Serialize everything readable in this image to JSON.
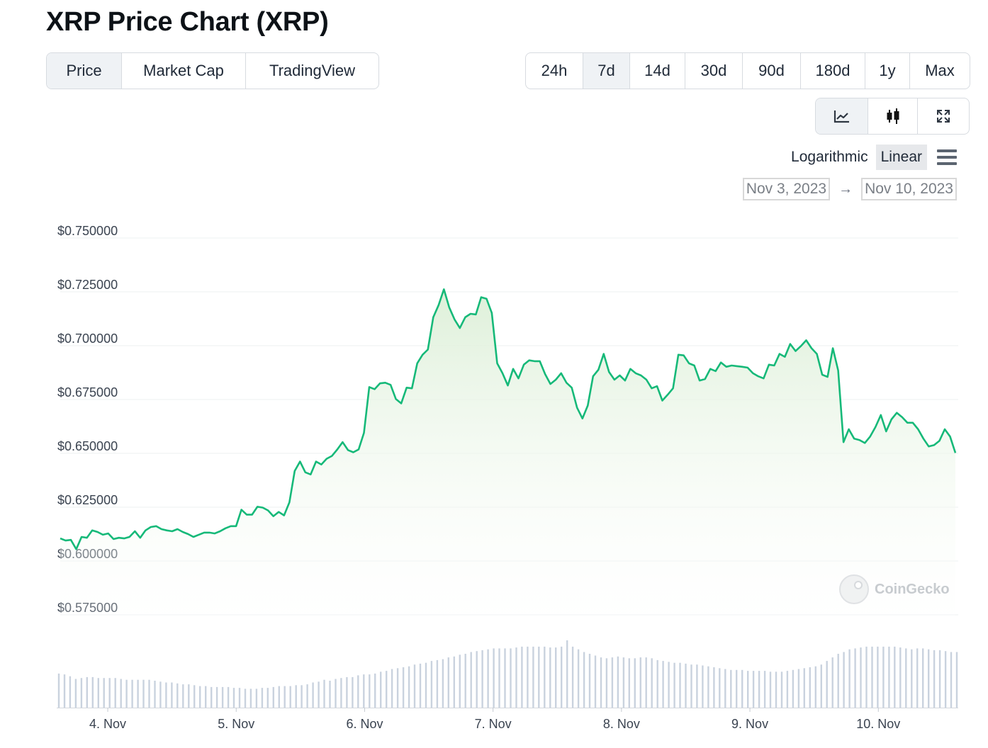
{
  "page": {
    "title": "XRP Price Chart (XRP)"
  },
  "tabs": {
    "view": [
      "Price",
      "Market Cap",
      "TradingView"
    ],
    "view_active": 0,
    "range": [
      "24h",
      "7d",
      "14d",
      "30d",
      "90d",
      "180d",
      "1y",
      "Max"
    ],
    "range_active": 1,
    "chart_type_icons": [
      "line-chart-icon",
      "candlestick-icon",
      "fullscreen-icon"
    ],
    "chart_type_active": 0
  },
  "scale": {
    "log_label": "Logarithmic",
    "linear_label": "Linear",
    "active": "Linear"
  },
  "date_range": {
    "from": "Nov 3, 2023",
    "arrow": "→",
    "to": "Nov 10, 2023"
  },
  "watermark": "CoinGecko",
  "colors": {
    "line": "#16b979",
    "area_top": "#dcefd7",
    "volume": "#c9d2de",
    "grid": "#eef0f2"
  },
  "chart_data": {
    "type": "area",
    "title": "",
    "xlabel": "",
    "ylabel": "",
    "ylim": [
      0.57,
      0.755
    ],
    "yticks": [
      "$0.750000",
      "$0.725000",
      "$0.700000",
      "$0.675000",
      "$0.650000",
      "$0.625000",
      "$0.600000",
      "$0.575000"
    ],
    "ytick_values": [
      0.75,
      0.725,
      0.7,
      0.675,
      0.65,
      0.625,
      0.6,
      0.575
    ],
    "xticks": [
      "4. Nov",
      "5. Nov",
      "6. Nov",
      "7. Nov",
      "8. Nov",
      "9. Nov",
      "10. Nov"
    ],
    "xtick_days": [
      4,
      5,
      6,
      7,
      8,
      9,
      10
    ],
    "x_start_day": 3.63,
    "x_end_day": 10.6,
    "grid": true,
    "series": [
      {
        "values": [
          0.6105,
          0.6095,
          0.6098,
          0.6055,
          0.6112,
          0.6108,
          0.6142,
          0.6135,
          0.6122,
          0.6128,
          0.6102,
          0.6108,
          0.6105,
          0.6112,
          0.6138,
          0.6108,
          0.6142,
          0.6158,
          0.6162,
          0.6148,
          0.6142,
          0.6138,
          0.6148,
          0.6135,
          0.6125,
          0.6112,
          0.6122,
          0.6132,
          0.6132,
          0.6128,
          0.6138,
          0.6152,
          0.6162,
          0.6162,
          0.6238,
          0.6215,
          0.6215,
          0.6252,
          0.6248,
          0.6235,
          0.6208,
          0.6228,
          0.6212,
          0.6272,
          0.6418,
          0.6462,
          0.6412,
          0.6402,
          0.6462,
          0.6448,
          0.6475,
          0.6488,
          0.6518,
          0.6552,
          0.6515,
          0.6505,
          0.6518,
          0.6595,
          0.6808,
          0.6798,
          0.6825,
          0.6828,
          0.6818,
          0.6752,
          0.6732,
          0.6805,
          0.6802,
          0.6918,
          0.6958,
          0.6982,
          0.7132,
          0.7188,
          0.7262,
          0.7178,
          0.7122,
          0.7082,
          0.7132,
          0.7148,
          0.7145,
          0.7225,
          0.7218,
          0.7152,
          0.6918,
          0.6872,
          0.6815,
          0.6892,
          0.6848,
          0.6912,
          0.6932,
          0.6928,
          0.6928,
          0.6868,
          0.6822,
          0.6842,
          0.6872,
          0.6828,
          0.6805,
          0.6712,
          0.6662,
          0.6722,
          0.6858,
          0.6888,
          0.6962,
          0.6878,
          0.6842,
          0.6862,
          0.6838,
          0.6892,
          0.6872,
          0.6862,
          0.6842,
          0.6802,
          0.6812,
          0.6745,
          0.6772,
          0.6802,
          0.6958,
          0.6955,
          0.6918,
          0.6908,
          0.6838,
          0.6845,
          0.6892,
          0.6882,
          0.6922,
          0.6902,
          0.6908,
          0.6905,
          0.6902,
          0.6898,
          0.6872,
          0.6858,
          0.6848,
          0.6912,
          0.6908,
          0.6962,
          0.6948,
          0.7008,
          0.6975,
          0.6998,
          0.7025,
          0.6988,
          0.6962,
          0.6865,
          0.6855,
          0.6988,
          0.6885,
          0.6552,
          0.6612,
          0.6568,
          0.6562,
          0.6548,
          0.6578,
          0.6622,
          0.6678,
          0.6602,
          0.6658,
          0.6688,
          0.6668,
          0.6642,
          0.6642,
          0.6612,
          0.6568,
          0.6532,
          0.6538,
          0.6558,
          0.6612,
          0.6578,
          0.6502
        ]
      }
    ],
    "volume": {
      "values": [
        38,
        37,
        35,
        32,
        33,
        34,
        34,
        33,
        33,
        33,
        33,
        32,
        31,
        31,
        31,
        31,
        31,
        30,
        29,
        28,
        28,
        27,
        26,
        26,
        25,
        24,
        24,
        23,
        23,
        23,
        23,
        22,
        22,
        21,
        21,
        21,
        22,
        22,
        23,
        24,
        24,
        24,
        25,
        25,
        26,
        28,
        29,
        31,
        30,
        32,
        33,
        34,
        34,
        36,
        37,
        37,
        38,
        40,
        41,
        43,
        44,
        45,
        46,
        48,
        49,
        50,
        52,
        53,
        54,
        56,
        57,
        59,
        60,
        62,
        63,
        64,
        65,
        66,
        66,
        66,
        66,
        67,
        68,
        68,
        68,
        68,
        68,
        67,
        67,
        68,
        75,
        68,
        65,
        62,
        60,
        58,
        56,
        55,
        56,
        57,
        56,
        55,
        55,
        56,
        56,
        55,
        53,
        52,
        51,
        50,
        50,
        49,
        48,
        48,
        47,
        46,
        45,
        44,
        43,
        42,
        42,
        42,
        41,
        41,
        41,
        41,
        40,
        40,
        40,
        41,
        42,
        43,
        44,
        45,
        46,
        48,
        52,
        56,
        60,
        62,
        65,
        66,
        67,
        68,
        68,
        68,
        68,
        68,
        68,
        67,
        66,
        65,
        66,
        66,
        65,
        64,
        64,
        63,
        62,
        62
      ]
    }
  }
}
